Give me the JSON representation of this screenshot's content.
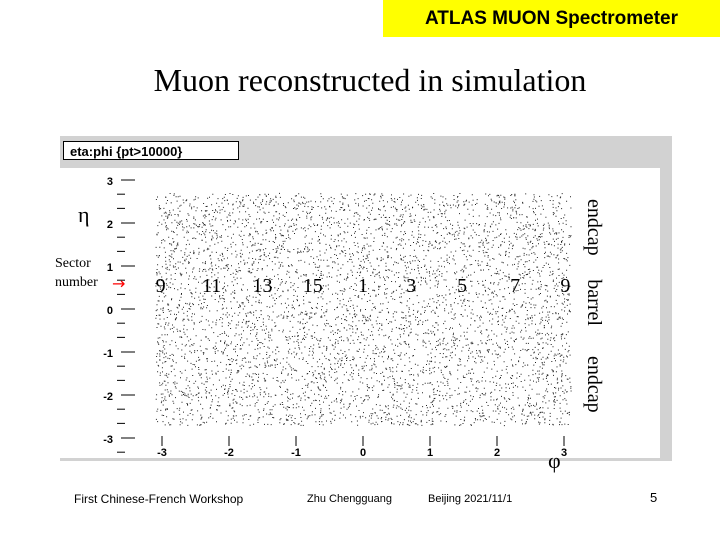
{
  "header": {
    "badge": "ATLAS MUON Spectrometer"
  },
  "slide": {
    "title": "Muon reconstructed in simulation"
  },
  "chart_data": {
    "type": "scatter",
    "title": "eta:phi {pt>10000}",
    "xlabel": "φ",
    "ylabel": "η",
    "xlim": [
      -3.4,
      3.3
    ],
    "ylim": [
      -3.4,
      3.3
    ],
    "x_ticks": [
      -3,
      -2,
      -1,
      0,
      1,
      2,
      3
    ],
    "y_ticks": [
      3,
      2,
      1,
      0,
      -1,
      -2,
      -3
    ],
    "point_region": {
      "x": [
        -3.1,
        3.1
      ],
      "y": [
        -2.7,
        2.7
      ]
    },
    "grid": false,
    "sector_label": "Sector number",
    "sector_arrow": "→",
    "sectors": [
      {
        "label": "9",
        "x": -3.02
      },
      {
        "label": "11",
        "x": -2.26
      },
      {
        "label": "13",
        "x": -1.5
      },
      {
        "label": "15",
        "x": -0.75
      },
      {
        "label": "1",
        "x": 0.0
      },
      {
        "label": "3",
        "x": 0.72
      },
      {
        "label": "5",
        "x": 1.48
      },
      {
        "label": "7",
        "x": 2.27
      },
      {
        "label": "9",
        "x": 3.02
      }
    ],
    "regions": [
      {
        "label": "endcap",
        "y_range": [
          1.1,
          2.7
        ]
      },
      {
        "label": "barrel",
        "y_range": [
          -0.8,
          1.1
        ]
      },
      {
        "label": "endcap",
        "y_range": [
          -2.7,
          -0.8
        ]
      }
    ]
  },
  "footer": {
    "workshop": "First Chinese-French Workshop",
    "author": "Zhu Chengguang",
    "place_date": "Beijing 2021/11/1",
    "page": "5"
  }
}
